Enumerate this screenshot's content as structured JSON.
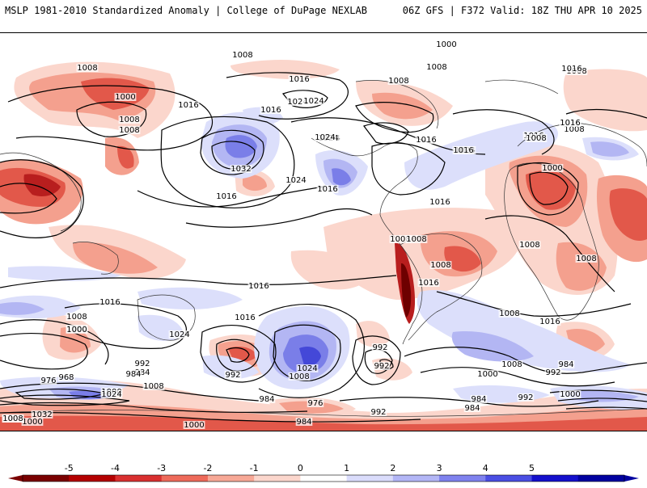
{
  "header": {
    "left_title": "MSLP 1981-2010 Standardized Anomaly | College of DuPage NEXLAB",
    "right_title": "06Z GFS | F372 Valid: 18Z THU APR 10 2025"
  },
  "colorbar": {
    "ticks": [
      "-5",
      "-4",
      "-3",
      "-2",
      "-1",
      "0",
      "1",
      "2",
      "3",
      "4",
      "5"
    ],
    "colors": [
      "#7a0000",
      "#b40000",
      "#d93030",
      "#ee6a5a",
      "#f7a896",
      "#fbd6cc",
      "#ffffff",
      "#dadcfb",
      "#b3b6f6",
      "#7f82ee",
      "#4a4ee3",
      "#1410cc",
      "#0000a0"
    ]
  },
  "map": {
    "colors": {
      "neg_light": "#fbd6cc",
      "neg_med": "#f4a08e",
      "neg_strong": "#e2584a",
      "neg_very": "#b81e1e",
      "neg_extreme": "#6e0000",
      "pos_light": "#dcdffb",
      "pos_med": "#b3b6f3",
      "pos_strong": "#7a7ee8",
      "pos_very": "#4448d8",
      "contour": "#000000",
      "coast": "#333333"
    },
    "isobar_labels": [
      "1008",
      "1000",
      "1008",
      "1008",
      "1024",
      "1016",
      "1016",
      "1008",
      "1008",
      "1016",
      "1024",
      "1032",
      "1016",
      "1024",
      "1016",
      "1024",
      "1016",
      "1024",
      "1024",
      "1016",
      "1008",
      "1008",
      "1008",
      "1016",
      "1024",
      "1008",
      "1000",
      "1016",
      "1016",
      "1008",
      "1008",
      "1000",
      "1008",
      "1016",
      "1016",
      "1016",
      "1008",
      "1008",
      "1008",
      "1024",
      "1016",
      "1016",
      "1000",
      "1008",
      "1000",
      "992",
      "984",
      "976",
      "968",
      "984",
      "1000",
      "1024",
      "1008",
      "1032",
      "1000",
      "992",
      "1016",
      "1024",
      "1008",
      "992",
      "1000",
      "984",
      "992",
      "984",
      "992",
      "1008",
      "1000",
      "992",
      "984",
      "984",
      "992",
      "1000",
      "1008",
      "976",
      "984",
      "1008",
      "1016"
    ]
  }
}
